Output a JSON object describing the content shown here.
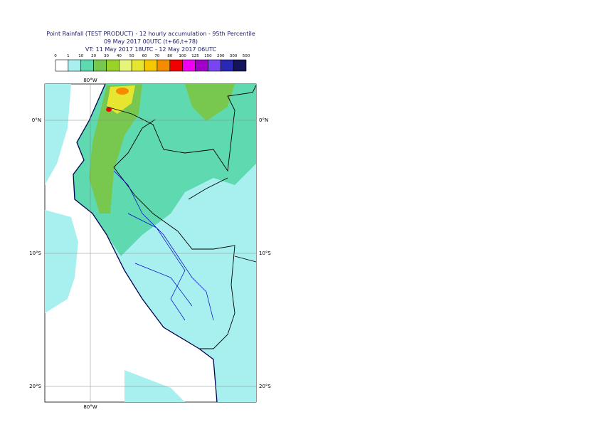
{
  "header": {
    "lines": [
      "Point Rainfall (TEST PRODUCT) - 12 hourly accumulation - 95th Percentile",
      "09 May 2017 00UTC (t+66,t+78)",
      "VT: 11 May 2017 18UTC - 12 May 2017 06UTC"
    ]
  },
  "legend": {
    "labels": [
      "0",
      "1",
      "10",
      "20",
      "30",
      "40",
      "50",
      "60",
      "70",
      "80",
      "100",
      "125",
      "150",
      "200",
      "300",
      "500"
    ],
    "colors": [
      "#ffffff",
      "#a8f0f0",
      "#5ed9b0",
      "#78c850",
      "#9ad22a",
      "#e6f57a",
      "#e6e630",
      "#f5c800",
      "#f58c00",
      "#f00000",
      "#f000f0",
      "#a000c8",
      "#7846f0",
      "#2828b4",
      "#14145a"
    ]
  },
  "map": {
    "lat_labels": [
      "0°N",
      "10°S",
      "20°S"
    ],
    "lon_label": "80°W"
  }
}
